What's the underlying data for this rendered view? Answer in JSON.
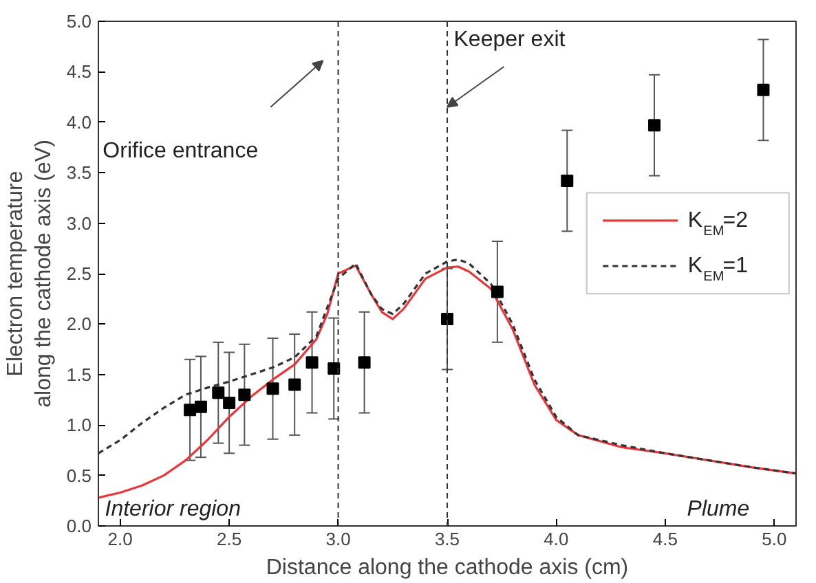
{
  "chart_data": {
    "type": "line",
    "xlabel": "Distance along the cathode axis (cm)",
    "ylabel": "Electron temperature\nalong the cathode axis (eV)",
    "xlim": [
      1.9,
      5.1
    ],
    "ylim": [
      0,
      5
    ],
    "xticks": [
      {
        "value": 2,
        "label": "2.0"
      },
      {
        "value": 2.5,
        "label": "2.5"
      },
      {
        "value": 3,
        "label": "3.0"
      },
      {
        "value": 3.5,
        "label": "3.5"
      },
      {
        "value": 4,
        "label": "4.0"
      },
      {
        "value": 4.5,
        "label": "4.5"
      },
      {
        "value": 5,
        "label": "5.0"
      }
    ],
    "yticks": [
      {
        "value": 0,
        "label": "0.0"
      },
      {
        "value": 0.5,
        "label": "0.5"
      },
      {
        "value": 1,
        "label": "1.0"
      },
      {
        "value": 1.5,
        "label": "1.5"
      },
      {
        "value": 2,
        "label": "2.0"
      },
      {
        "value": 2.5,
        "label": "2.5"
      },
      {
        "value": 3,
        "label": "3.0"
      },
      {
        "value": 3.5,
        "label": "3.5"
      },
      {
        "value": 4,
        "label": "4.0"
      },
      {
        "value": 4.5,
        "label": "4.5"
      },
      {
        "value": 5,
        "label": "5.0"
      }
    ],
    "grid": false,
    "legend": "right",
    "series": [
      {
        "name": "K$_{EM}$=2",
        "color": "#e8363a",
        "line_style": "solid",
        "marker": "none",
        "x": [
          1.9,
          2.0,
          2.1,
          2.2,
          2.3,
          2.4,
          2.5,
          2.6,
          2.7,
          2.8,
          2.9,
          2.95,
          3.0,
          3.08,
          3.15,
          3.2,
          3.25,
          3.3,
          3.4,
          3.5,
          3.55,
          3.6,
          3.7,
          3.8,
          3.9,
          4.0,
          4.1,
          4.3,
          4.5,
          4.7,
          4.9,
          5.1
        ],
        "values": [
          0.28,
          0.33,
          0.4,
          0.5,
          0.65,
          0.85,
          1.08,
          1.28,
          1.45,
          1.6,
          1.85,
          2.1,
          2.5,
          2.58,
          2.3,
          2.12,
          2.05,
          2.15,
          2.45,
          2.56,
          2.57,
          2.52,
          2.35,
          1.95,
          1.4,
          1.05,
          0.9,
          0.78,
          0.72,
          0.65,
          0.58,
          0.52
        ]
      },
      {
        "name": "K$_{EM}$=1",
        "color": "#333333",
        "line_style": "dashed",
        "marker": "none",
        "x": [
          1.9,
          2.0,
          2.1,
          2.2,
          2.3,
          2.4,
          2.5,
          2.6,
          2.7,
          2.8,
          2.9,
          3.0,
          3.08,
          3.15,
          3.2,
          3.25,
          3.3,
          3.4,
          3.5,
          3.55,
          3.6,
          3.7,
          3.8,
          3.9,
          4.0,
          4.1,
          4.3,
          4.5,
          4.7,
          4.9,
          5.1
        ],
        "values": [
          0.72,
          0.85,
          1.02,
          1.17,
          1.3,
          1.37,
          1.43,
          1.5,
          1.57,
          1.67,
          1.88,
          2.45,
          2.6,
          2.3,
          2.15,
          2.1,
          2.2,
          2.5,
          2.62,
          2.64,
          2.6,
          2.4,
          2.0,
          1.45,
          1.08,
          0.9,
          0.8,
          0.72,
          0.65,
          0.58,
          0.52
        ]
      },
      {
        "type": "scatter",
        "color": "#000000",
        "marker": "square",
        "x": [
          2.32,
          2.37,
          2.45,
          2.5,
          2.57,
          2.7,
          2.8,
          2.88,
          2.98,
          3.12,
          3.5,
          3.73,
          4.05,
          4.45,
          4.95
        ],
        "values": [
          1.15,
          1.18,
          1.32,
          1.22,
          1.3,
          1.36,
          1.4,
          1.62,
          1.56,
          1.62,
          2.05,
          2.32,
          3.42,
          3.97,
          4.32
        ],
        "errors": [
          0.5,
          0.5,
          0.5,
          0.5,
          0.5,
          0.5,
          0.5,
          0.5,
          0.5,
          0.5,
          0.5,
          0.5,
          0.5,
          0.5,
          0.5
        ]
      }
    ],
    "ref_lines": [
      {
        "axis": "x",
        "value": 3.0,
        "color": "#333333",
        "line_style": "dashed"
      },
      {
        "axis": "x",
        "value": 3.5,
        "color": "#333333",
        "line_style": "dashed"
      }
    ],
    "annotations": [
      "Orifice entrance",
      {
        "text": "Keeper exit",
        "x": 3.5,
        "y": 4.15
      },
      "Interior region",
      "Plume"
    ]
  }
}
